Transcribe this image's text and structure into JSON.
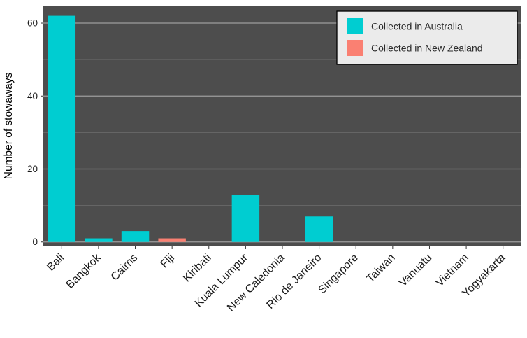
{
  "chart_data": {
    "type": "bar",
    "title": "",
    "xlabel": "",
    "ylabel": "Number of stowaways",
    "categories": [
      "Bali",
      "Bangkok",
      "Cairns",
      "Fiji",
      "Kiribati",
      "Kuala Lumpur",
      "New Caledonia",
      "Rio de Janeiro",
      "Singapore",
      "Taiwan",
      "Vanuatu",
      "Vietnam",
      "Yogyakarta"
    ],
    "series": [
      {
        "name": "Collected in Australia",
        "color": "#00CDD1",
        "values": [
          62,
          1,
          3,
          0,
          0,
          13,
          0,
          7,
          0,
          0,
          0,
          0,
          0
        ]
      },
      {
        "name": "Collected in New Zealand",
        "color": "#FA8072",
        "values": [
          0,
          0,
          0,
          1,
          0,
          0,
          0,
          0,
          0,
          0,
          0,
          0,
          0
        ]
      }
    ],
    "yticks": [
      0,
      20,
      40,
      60
    ],
    "ylim": [
      -1.2,
      64.8
    ],
    "grid": "horizontal",
    "legend_position": "top-right",
    "panel_background": "#4D4D4D",
    "legend_background": "#EBEBEB",
    "gridline_color_major": "rgba(255,255,255,0.45)",
    "gridline_color_minor": "rgba(255,255,255,0.18)",
    "tick_label_color": "#1a1a1a",
    "axis_label_color": "#000000"
  }
}
